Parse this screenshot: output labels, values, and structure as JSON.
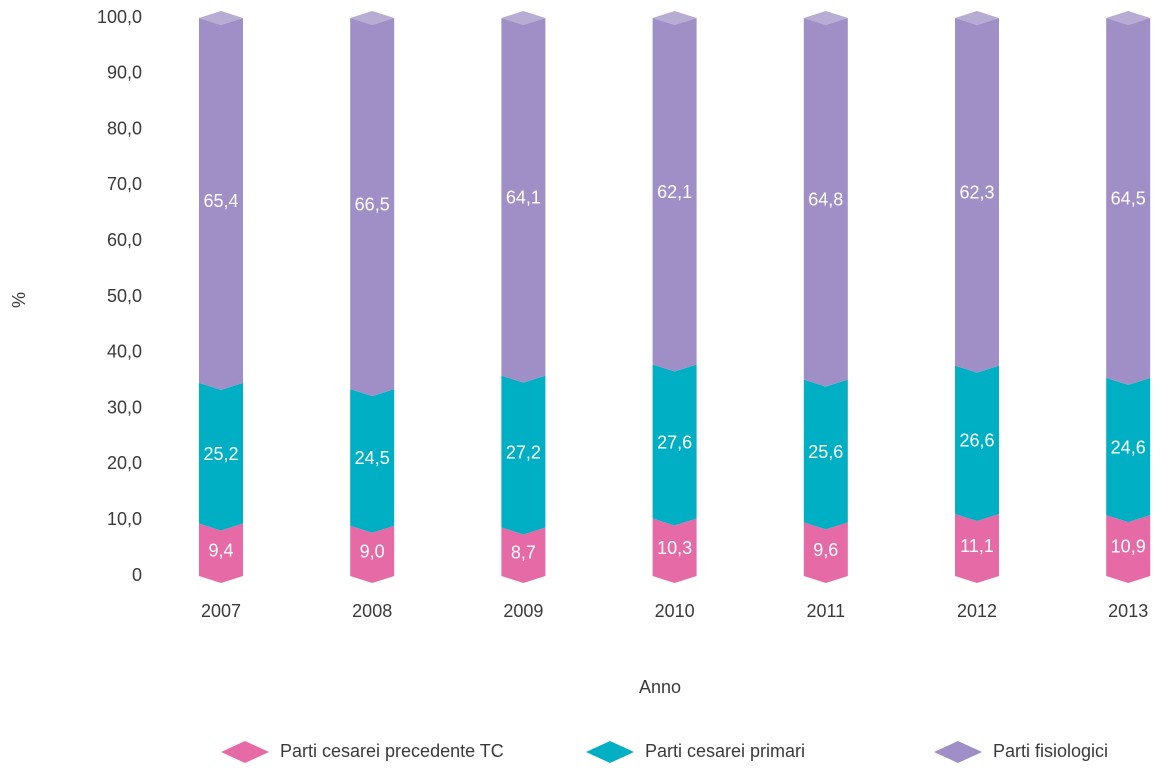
{
  "chart_data": {
    "type": "bar",
    "stacked": true,
    "y_label": "%",
    "x_label": "Anno",
    "categories": [
      "2007",
      "2008",
      "2009",
      "2010",
      "2011",
      "2012",
      "2013"
    ],
    "series": [
      {
        "name": "Parti cesarei precedente TC",
        "color": "#e56aa6",
        "values": [
          9.4,
          9.0,
          8.7,
          10.3,
          9.6,
          11.1,
          10.9
        ],
        "value_labels": [
          "9,4",
          "9,0",
          "8,7",
          "10,3",
          "9,6",
          "11,1",
          "10,9"
        ]
      },
      {
        "name": "Parti cesarei primari",
        "color": "#00afc4",
        "values": [
          25.2,
          24.5,
          27.2,
          27.6,
          25.6,
          26.6,
          24.6
        ],
        "value_labels": [
          "25,2",
          "24,5",
          "27,2",
          "27,6",
          "25,6",
          "26,6",
          "24,6"
        ]
      },
      {
        "name": "Parti fisiologici",
        "color": "#a08fc6",
        "values": [
          65.4,
          66.5,
          64.1,
          62.1,
          64.8,
          62.3,
          64.5
        ],
        "value_labels": [
          "65,4",
          "66,5",
          "64,1",
          "62,1",
          "64,8",
          "62,3",
          "64,5"
        ]
      }
    ],
    "ylim": [
      0,
      100
    ],
    "yticks": [
      0,
      {
        "value": 10,
        "label": "10,0"
      },
      {
        "value": 20,
        "label": "20,0"
      },
      {
        "value": 30,
        "label": "30,0"
      },
      {
        "value": 40,
        "label": "40,0"
      },
      {
        "value": 50,
        "label": "50,0"
      },
      {
        "value": 60,
        "label": "60,0"
      },
      {
        "value": 70,
        "label": "70,0"
      },
      {
        "value": 80,
        "label": "80,0"
      },
      {
        "value": 90,
        "label": "90,0"
      },
      {
        "value": 100,
        "label": "100,0"
      }
    ],
    "grid": false,
    "legend": "bottom"
  }
}
